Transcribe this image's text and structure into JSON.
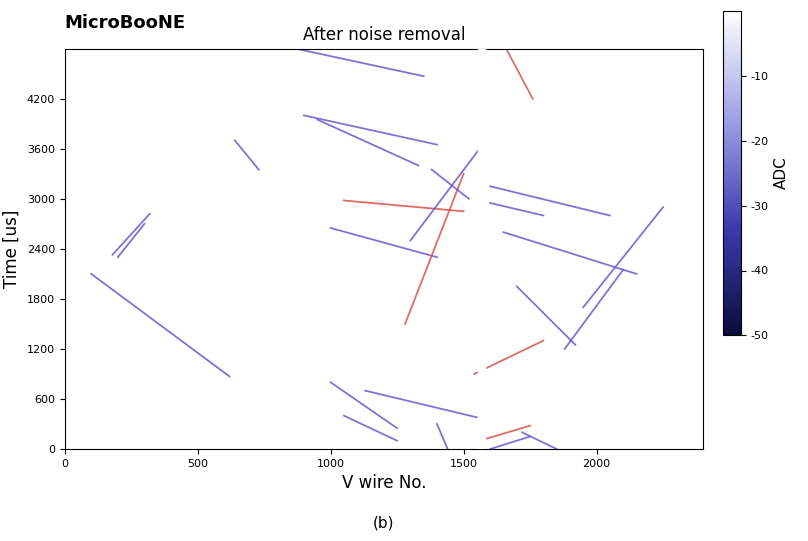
{
  "chart_data": {
    "type": "event_display",
    "title": "After noise removal",
    "label": "MicroBooNE",
    "caption": "(b)",
    "x_label": "V wire No.",
    "y_label": "Time [us]",
    "xlim": [
      0,
      2400
    ],
    "ylim": [
      0,
      4800
    ],
    "xticks": [
      0,
      500,
      1000,
      1500,
      2000
    ],
    "yticks": [
      0,
      600,
      1200,
      1800,
      2400,
      3000,
      3600,
      4200
    ],
    "colorbar": {
      "label": "ADC",
      "range": [
        -50,
        0
      ],
      "ticks": [
        -50,
        -40,
        -30,
        -20,
        -10
      ]
    },
    "dead_wires": [
      [
        1555,
        1580
      ]
    ],
    "tracks": [
      {
        "x": [
          100,
          620
        ],
        "y": [
          2100,
          870
        ],
        "color": "#6a5acd"
      },
      {
        "x": [
          180,
          320
        ],
        "y": [
          2330,
          2820
        ],
        "color": "#6a5acd"
      },
      {
        "x": [
          200,
          300
        ],
        "y": [
          2300,
          2700
        ],
        "color": "#6a5acd"
      },
      {
        "x": [
          640,
          730
        ],
        "y": [
          3700,
          3350
        ],
        "color": "#6a5acd"
      },
      {
        "x": [
          870,
          1350
        ],
        "y": [
          4800,
          4470
        ],
        "color": "#6a5acd"
      },
      {
        "x": [
          900,
          1400
        ],
        "y": [
          4000,
          3650
        ],
        "color": "#6a5acd"
      },
      {
        "x": [
          950,
          1330
        ],
        "y": [
          3950,
          3400
        ],
        "color": "#6a5acd"
      },
      {
        "x": [
          1000,
          1400
        ],
        "y": [
          2650,
          2300
        ],
        "color": "#6a5acd"
      },
      {
        "x": [
          1050,
          1500
        ],
        "y": [
          2980,
          2850
        ],
        "color": "#d9534f"
      },
      {
        "x": [
          1280,
          1500
        ],
        "y": [
          1500,
          3300
        ],
        "color": "#d9534f"
      },
      {
        "x": [
          1300,
          1560
        ],
        "y": [
          2500,
          3600
        ],
        "color": "#6a5acd"
      },
      {
        "x": [
          1380,
          1520
        ],
        "y": [
          3350,
          3000
        ],
        "color": "#6a5acd"
      },
      {
        "x": [
          1000,
          1250
        ],
        "y": [
          800,
          250
        ],
        "color": "#6a5acd"
      },
      {
        "x": [
          1050,
          1250
        ],
        "y": [
          400,
          100
        ],
        "color": "#6a5acd"
      },
      {
        "x": [
          1130,
          1550
        ],
        "y": [
          700,
          380
        ],
        "color": "#6a5acd"
      },
      {
        "x": [
          1400,
          1440
        ],
        "y": [
          300,
          0
        ],
        "color": "#6a5acd"
      },
      {
        "x": [
          1540,
          1800
        ],
        "y": [
          900,
          1300
        ],
        "color": "#d9534f"
      },
      {
        "x": [
          1600,
          1750
        ],
        "y": [
          0,
          150
        ],
        "color": "#6a5acd"
      },
      {
        "x": [
          1560,
          1750
        ],
        "y": [
          100,
          280
        ],
        "color": "#d9534f"
      },
      {
        "x": [
          1600,
          2050
        ],
        "y": [
          3150,
          2800
        ],
        "color": "#6a5acd"
      },
      {
        "x": [
          1600,
          1800
        ],
        "y": [
          2950,
          2800
        ],
        "color": "#6a5acd"
      },
      {
        "x": [
          1650,
          2150
        ],
        "y": [
          2600,
          2100
        ],
        "color": "#6a5acd"
      },
      {
        "x": [
          1700,
          1920
        ],
        "y": [
          1950,
          1250
        ],
        "color": "#6a5acd"
      },
      {
        "x": [
          1950,
          2250
        ],
        "y": [
          1700,
          2900
        ],
        "color": "#6a5acd"
      },
      {
        "x": [
          1880,
          2100
        ],
        "y": [
          1200,
          2150
        ],
        "color": "#6a5acd"
      },
      {
        "x": [
          1660,
          1760
        ],
        "y": [
          4800,
          4200
        ],
        "color": "#d9534f"
      },
      {
        "x": [
          1720,
          1850
        ],
        "y": [
          200,
          0
        ],
        "color": "#6a5acd"
      }
    ]
  }
}
